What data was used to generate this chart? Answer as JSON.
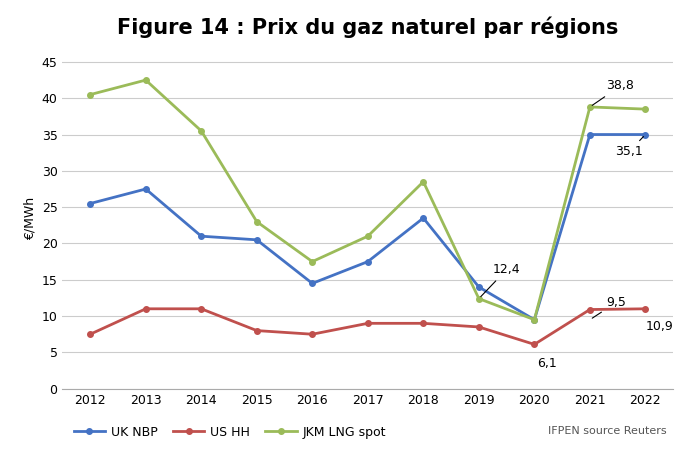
{
  "title": "Figure 14 : Prix du gaz naturel par régions",
  "ylabel": "€/MWh",
  "years": [
    2012,
    2013,
    2014,
    2015,
    2016,
    2017,
    2018,
    2019,
    2020,
    2021,
    2022
  ],
  "uk_nbp": [
    25.5,
    27.5,
    21.0,
    20.5,
    14.5,
    17.5,
    23.5,
    14.0,
    9.5,
    35.0,
    35.0
  ],
  "us_hh": [
    7.5,
    11.0,
    11.0,
    8.0,
    7.5,
    9.0,
    9.0,
    8.5,
    6.1,
    10.9,
    11.0
  ],
  "jkm_lng": [
    40.5,
    42.5,
    35.5,
    23.0,
    17.5,
    21.0,
    28.5,
    12.4,
    9.5,
    38.8,
    38.5
  ],
  "uk_nbp_color": "#4472c4",
  "us_hh_color": "#c0504d",
  "jkm_lng_color": "#9bbb59",
  "ylim": [
    0,
    47
  ],
  "yticks": [
    0,
    5,
    10,
    15,
    20,
    25,
    30,
    35,
    40,
    45
  ],
  "legend_labels": [
    "UK NBP",
    "US HH",
    "JKM LNG spot"
  ],
  "source_text": "IFPEN source Reuters",
  "background_color": "#ffffff",
  "grid_color": "#cccccc",
  "title_fontsize": 15,
  "axis_fontsize": 9,
  "annotation_fontsize": 9
}
